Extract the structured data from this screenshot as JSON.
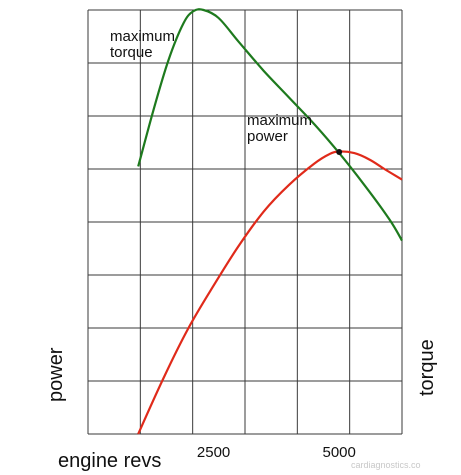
{
  "chart_data": {
    "type": "line",
    "xlabel": "engine revs",
    "ylabel_left": "power",
    "ylabel_right": "torque",
    "x_ticks": [
      {
        "value": 2500,
        "label": "2500"
      },
      {
        "value": 5000,
        "label": "5000"
      }
    ],
    "xlim": [
      0,
      6250
    ],
    "ylim": [
      0,
      8
    ],
    "grid": true,
    "series": [
      {
        "key": "torque",
        "color": "#1e7a1e",
        "points": [
          [
            1000,
            5.05
          ],
          [
            1300,
            6.1
          ],
          [
            1600,
            7.05
          ],
          [
            1900,
            7.75
          ],
          [
            2100,
            7.98
          ],
          [
            2300,
            8.0
          ],
          [
            2600,
            7.85
          ],
          [
            3000,
            7.4
          ],
          [
            3500,
            6.85
          ],
          [
            4000,
            6.35
          ],
          [
            4500,
            5.85
          ],
          [
            5000,
            5.3
          ],
          [
            5500,
            4.7
          ],
          [
            6000,
            4.05
          ],
          [
            6250,
            3.65
          ]
        ]
      },
      {
        "key": "power",
        "color": "#e02a1a",
        "points": [
          [
            1000,
            0.0
          ],
          [
            1500,
            1.05
          ],
          [
            2000,
            2.0
          ],
          [
            2500,
            2.8
          ],
          [
            3000,
            3.55
          ],
          [
            3500,
            4.2
          ],
          [
            4000,
            4.7
          ],
          [
            4500,
            5.1
          ],
          [
            4800,
            5.28
          ],
          [
            5000,
            5.33
          ],
          [
            5300,
            5.3
          ],
          [
            5600,
            5.18
          ],
          [
            5900,
            5.0
          ],
          [
            6250,
            4.8
          ]
        ]
      }
    ],
    "annotations": [
      {
        "key": "torque-peak",
        "lines": [
          "maximum",
          "torque"
        ]
      },
      {
        "key": "power-peak",
        "lines": [
          "maximum",
          "power"
        ]
      }
    ]
  },
  "watermark": "cardiagnostics.co"
}
